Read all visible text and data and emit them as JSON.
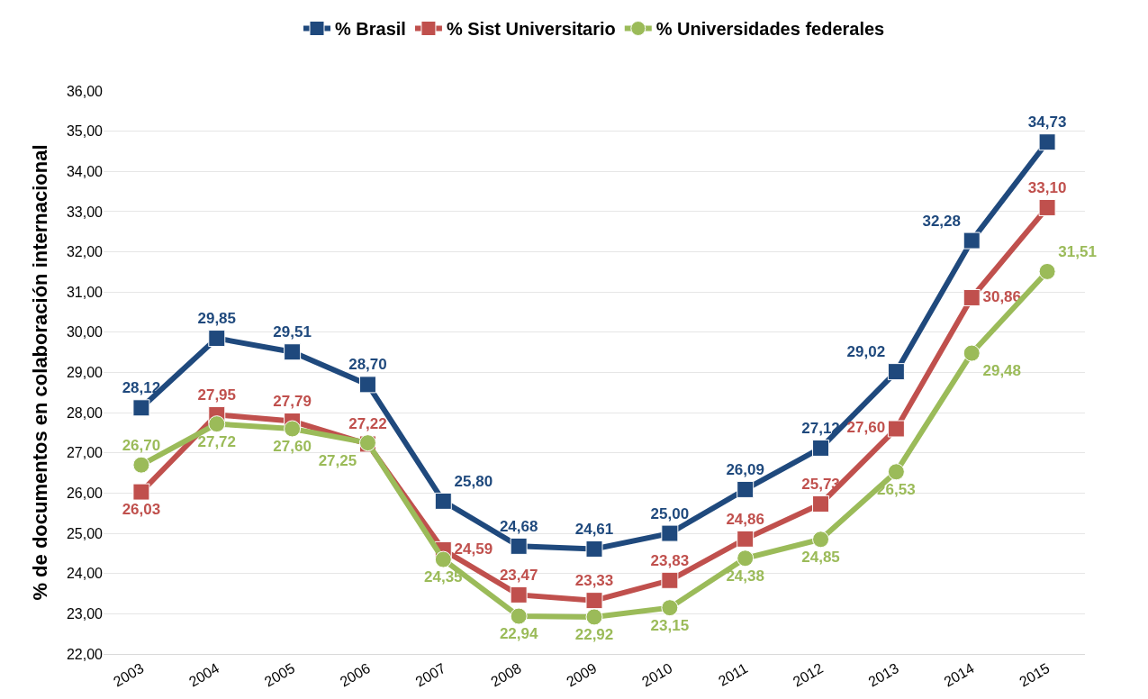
{
  "chart_data": {
    "type": "line",
    "ylabel": "% de documentos en colaboración internacional",
    "categories": [
      "2003",
      "2004",
      "2005",
      "2006",
      "2007",
      "2008",
      "2009",
      "2010",
      "2011",
      "2012",
      "2013",
      "2014",
      "2015"
    ],
    "series": [
      {
        "name": "% Brasil",
        "color": "#1f497d",
        "marker": "square",
        "values": [
          28.12,
          29.85,
          29.51,
          28.7,
          25.8,
          24.68,
          24.61,
          25.0,
          26.09,
          27.12,
          29.02,
          32.28,
          34.73
        ],
        "value_labels": [
          "28,12",
          "29,85",
          "29,51",
          "28,70",
          "25,80",
          "24,68",
          "24,61",
          "25,00",
          "26,09",
          "27,12",
          "29,02",
          "32,28",
          "34,73"
        ]
      },
      {
        "name": "% Sist Universitario",
        "color": "#c0504d",
        "marker": "square",
        "values": [
          26.03,
          27.95,
          27.79,
          27.22,
          24.59,
          23.47,
          23.33,
          23.83,
          24.86,
          25.73,
          27.6,
          30.86,
          33.1
        ],
        "value_labels": [
          "26,03",
          "27,95",
          "27,79",
          "27,22",
          "24,59",
          "23,47",
          "23,33",
          "23,83",
          "24,86",
          "25,73",
          "27,60",
          "30,86",
          "33,10"
        ]
      },
      {
        "name": "% Universidades federales",
        "color": "#9bbb59",
        "marker": "circle",
        "values": [
          26.7,
          27.72,
          27.6,
          27.25,
          24.35,
          22.94,
          22.92,
          23.15,
          24.38,
          24.85,
          26.53,
          29.48,
          31.51
        ],
        "value_labels": [
          "26,70",
          "27,72",
          "27,60",
          "27,25",
          "24,35",
          "22,94",
          "22,92",
          "23,15",
          "24,38",
          "24,85",
          "26,53",
          "29,48",
          "31,51"
        ]
      }
    ],
    "ylim": [
      22,
      36
    ],
    "yticks": [
      {
        "value": 22,
        "label": "22,00"
      },
      {
        "value": 23,
        "label": "23,00"
      },
      {
        "value": 24,
        "label": "24,00"
      },
      {
        "value": 25,
        "label": "25,00"
      },
      {
        "value": 26,
        "label": "26,00"
      },
      {
        "value": 27,
        "label": "27,00"
      },
      {
        "value": 28,
        "label": "28,00"
      },
      {
        "value": 29,
        "label": "29,00"
      },
      {
        "value": 30,
        "label": "30,00"
      },
      {
        "value": 31,
        "label": "31,00"
      },
      {
        "value": 32,
        "label": "32,00"
      },
      {
        "value": 33,
        "label": "33,00"
      },
      {
        "value": 34,
        "label": "34,00"
      },
      {
        "value": 35,
        "label": "35,00"
      },
      {
        "value": 36,
        "label": "36,00"
      }
    ],
    "grid": "y",
    "legend": "top",
    "line_style": "solid"
  }
}
